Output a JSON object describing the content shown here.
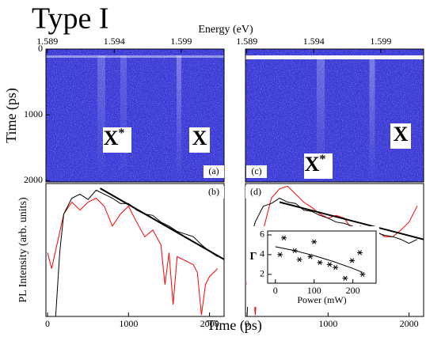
{
  "title": "Type I",
  "axis_labels": {
    "energy": "Energy (eV)",
    "time_left": "Time (ps)",
    "intensity": "PL Intensity (arb. units)",
    "time_bottom": "Time (ps)"
  },
  "chart_data": [
    {
      "type": "image",
      "panel_label": "(a)",
      "xlim": [
        1.5889,
        1.6022
      ],
      "xticks": [
        1.589,
        1.594,
        1.599
      ],
      "ylim": [
        0,
        2020
      ],
      "yinvert": true,
      "yticks": [
        0,
        1000,
        2000
      ],
      "annotations": [
        {
          "text": "X",
          "sup": "*"
        },
        {
          "text": "X"
        }
      ]
    },
    {
      "type": "image",
      "panel_label": "(c)",
      "xlim": [
        1.5889,
        1.6022
      ],
      "xticks": [
        1.589,
        1.594,
        1.599
      ],
      "ylim": [
        0,
        2020
      ],
      "yinvert": true,
      "annotations": [
        {
          "text": "X"
        },
        {
          "text": "X",
          "sup": "*"
        }
      ]
    },
    {
      "type": "line",
      "panel_label": "(b)",
      "xlim": [
        -20,
        2180
      ],
      "xticks": [
        0,
        1000,
        2000
      ],
      "ylim": [
        0,
        1
      ],
      "series": [
        {
          "color": "#ff0000",
          "x": [
            0,
            50,
            200,
            300,
            400,
            500,
            600,
            700,
            800,
            900,
            1000,
            1100,
            1200,
            1300,
            1400,
            1450,
            1500,
            1550,
            1600,
            1700,
            1800,
            1850,
            1900,
            1950,
            2000,
            2100
          ],
          "values": [
            0.48,
            0.36,
            0.77,
            0.86,
            0.8,
            0.86,
            0.89,
            0.83,
            0.68,
            0.77,
            0.83,
            0.71,
            0.6,
            0.65,
            0.54,
            0.24,
            0.48,
            0.09,
            0.45,
            0.42,
            0.39,
            0.33,
            0.01,
            0.24,
            0.3,
            0.36
          ]
        },
        {
          "color": "#000000",
          "x": [
            100,
            150,
            200,
            300,
            400,
            500,
            600,
            700,
            800,
            900,
            1000,
            1100,
            1200,
            1300,
            1400,
            1500,
            1600,
            1700,
            1800,
            1900,
            2000,
            2100
          ],
          "values": [
            0.0,
            0.48,
            0.77,
            0.89,
            0.92,
            0.88,
            0.95,
            0.92,
            0.89,
            0.85,
            0.85,
            0.8,
            0.77,
            0.76,
            0.71,
            0.68,
            0.64,
            0.62,
            0.6,
            0.54,
            0.49,
            0.45
          ]
        },
        {
          "color": "#000000",
          "line_width": 2,
          "x": [
            650,
            2180
          ],
          "values": [
            0.964,
            0.429
          ]
        }
      ]
    },
    {
      "type": "line",
      "panel_label": "(d)",
      "xlim": [
        -20,
        2180
      ],
      "xticks": [
        0,
        1000,
        2000
      ],
      "ylim": [
        0,
        1
      ],
      "series": [
        {
          "color": "#ff0000",
          "x": [
            0,
            50,
            100,
            150,
            200,
            300,
            400,
            500,
            600,
            700,
            800,
            900,
            1000,
            1100,
            1200,
            1300,
            1400,
            1500,
            1600,
            1700,
            1800,
            1900,
            2000,
            2100
          ],
          "values": [
            0.24,
            0.54,
            0.01,
            0.42,
            0.65,
            0.89,
            0.96,
            0.98,
            0.92,
            0.86,
            0.82,
            0.77,
            0.74,
            0.76,
            0.74,
            0.65,
            0.68,
            0.65,
            0.64,
            0.6,
            0.6,
            0.65,
            0.71,
            0.83
          ]
        },
        {
          "color": "#000000",
          "x": [
            0,
            50,
            100,
            200,
            300,
            400,
            500,
            600,
            700,
            800,
            900,
            1000,
            1100,
            1200,
            1300,
            1400,
            1500,
            1600,
            1700,
            1800,
            1900,
            2000,
            2100
          ],
          "values": [
            0.0,
            0.6,
            0.71,
            0.83,
            0.85,
            0.89,
            0.86,
            0.85,
            0.8,
            0.79,
            0.76,
            0.74,
            0.71,
            0.7,
            0.68,
            0.65,
            0.64,
            0.63,
            0.61,
            0.6,
            0.58,
            0.55,
            0.58
          ]
        },
        {
          "color": "#000000",
          "line_width": 2,
          "x": [
            400,
            2180
          ],
          "values": [
            0.86,
            0.58
          ]
        }
      ]
    },
    {
      "type": "scatter",
      "xlabel": "Power (mW)",
      "ylabel": "Γ",
      "xlim": [
        -20,
        260
      ],
      "xticks": [
        0,
        100,
        200
      ],
      "ylim": [
        1.1,
        6.4
      ],
      "yticks": [
        2,
        4,
        6
      ],
      "series": [
        {
          "marker": "asterisk",
          "color": "#000000",
          "x": [
            12,
            22,
            50,
            62,
            90,
            100,
            115,
            140,
            155,
            180,
            198,
            218,
            225
          ],
          "values": [
            4.0,
            5.7,
            4.4,
            3.5,
            3.8,
            5.3,
            3.2,
            3.0,
            2.7,
            1.6,
            3.4,
            4.2,
            2.0
          ]
        },
        {
          "color": "#000000",
          "x": [
            0,
            50,
            100,
            150,
            200,
            225
          ],
          "values": [
            4.8,
            4.4,
            3.9,
            3.3,
            2.6,
            2.2
          ]
        }
      ]
    }
  ]
}
